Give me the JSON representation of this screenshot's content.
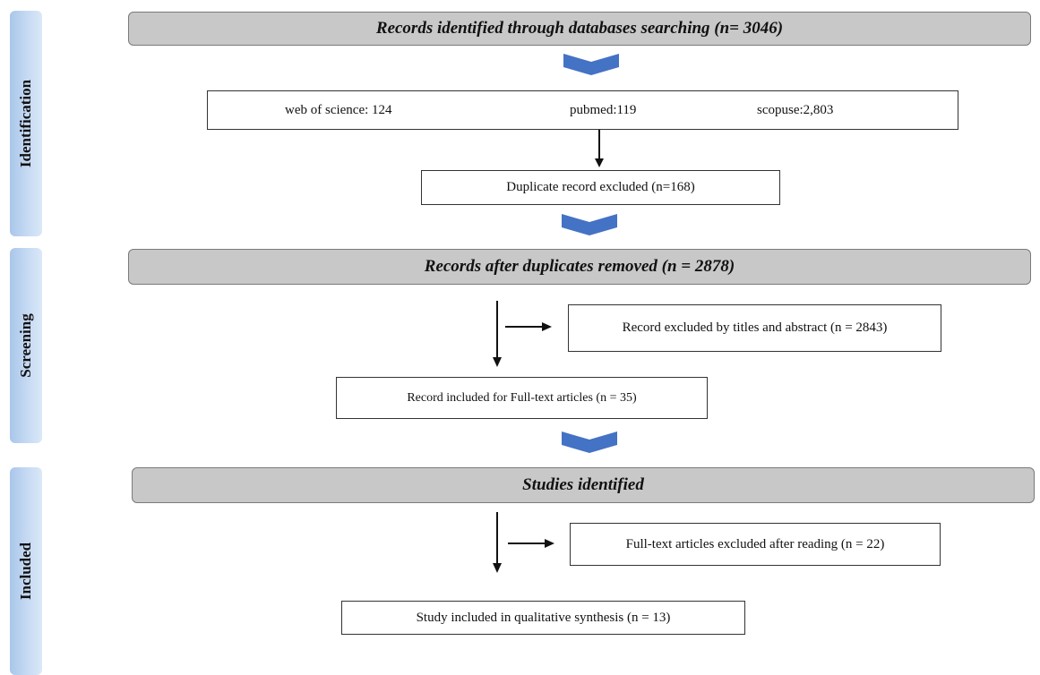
{
  "stages": {
    "identification": "Identification",
    "screening": "Screening",
    "included": "Included"
  },
  "headers": {
    "identified": "Records identified through databases searching (n= 3046)",
    "after_duplicates": "Records after duplicates removed (n = 2878)",
    "studies": "Studies identified"
  },
  "databases": {
    "wos": "web of science: 124",
    "pubmed": "pubmed:119",
    "scopus": "scopuse:2,803"
  },
  "boxes": {
    "duplicates": "Duplicate record excluded (n=168)",
    "excluded_titles": "Record excluded by titles and abstract (n = 2843)",
    "full_text_included": "Record included for Full-text articles (n = 35)",
    "full_text_excluded": "Full-text articles excluded after reading (n = 22)",
    "qualitative": "Study included in qualitative synthesis  (n = 13)"
  },
  "colors": {
    "stage_gradient": "#a9c6ea",
    "header_fill": "#c8c8c8",
    "chevron": "#4472c4"
  }
}
